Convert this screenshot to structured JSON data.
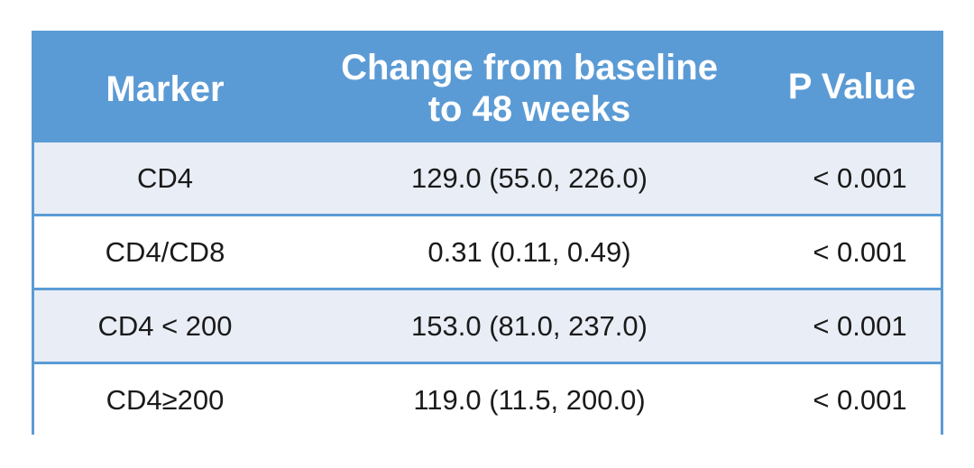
{
  "table": {
    "headers": {
      "marker": "Marker",
      "change_line1": "Change from baseline",
      "change_line2": "to 48 weeks",
      "p_value": "P Value"
    },
    "rows": [
      {
        "marker": "CD4",
        "change": "129.0 (55.0, 226.0)",
        "p_value": "< 0.001"
      },
      {
        "marker": "CD4/CD8",
        "change": "0.31 (0.11, 0.49)",
        "p_value": "< 0.001"
      },
      {
        "marker": "CD4 < 200",
        "change": "153.0 (81.0, 237.0)",
        "p_value": "< 0.001"
      },
      {
        "marker": "CD4≥200",
        "change": "119.0 (11.5, 200.0)",
        "p_value": "< 0.001"
      }
    ]
  },
  "colors": {
    "header_bg": "#5b9bd5",
    "header_text": "#ffffff",
    "row_alt_bg": "#e8edf6",
    "row_bg": "#ffffff",
    "border": "#5b9bd5"
  }
}
